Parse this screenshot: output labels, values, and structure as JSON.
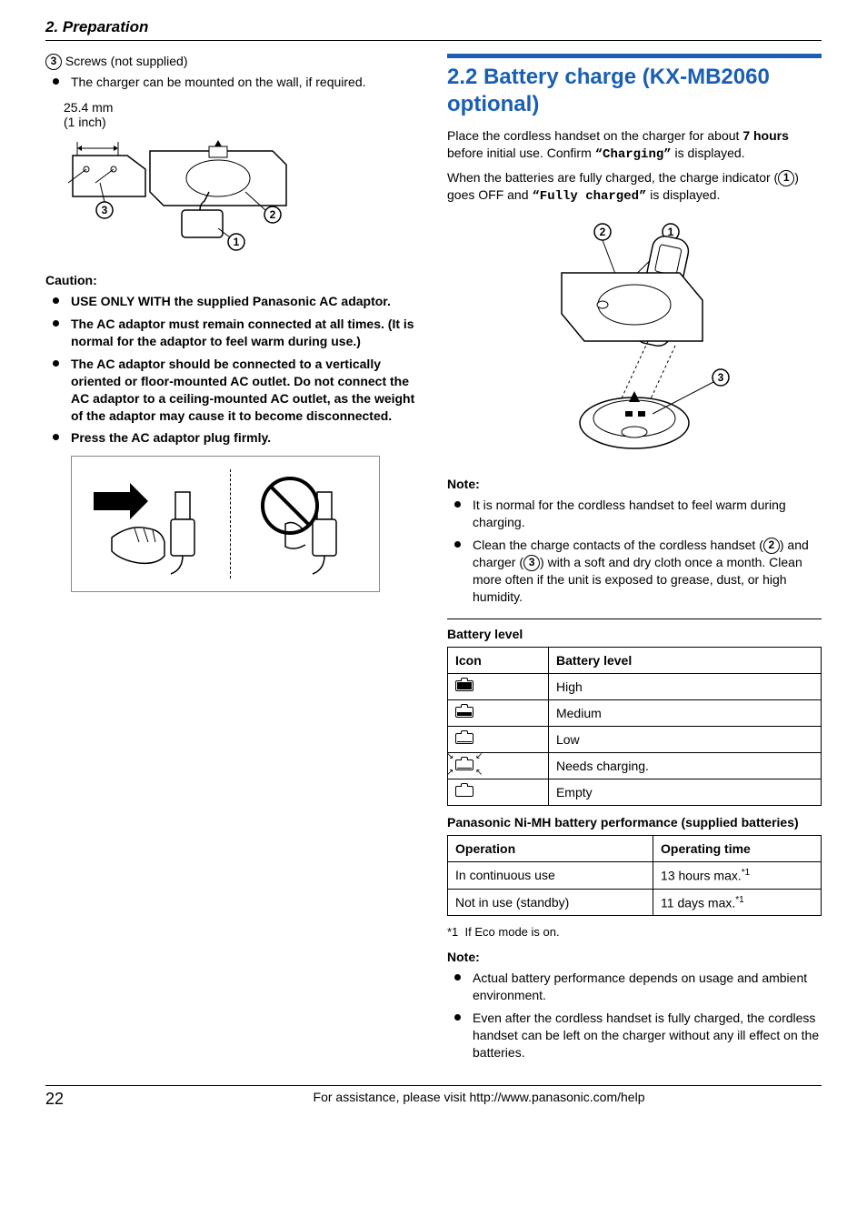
{
  "header": {
    "chapter": "2. Preparation"
  },
  "left": {
    "item3_num": "3",
    "item3_label": "Screws (not supplied)",
    "item3_note": "The charger can be mounted on the wall, if required.",
    "fig1": {
      "dim_mm": "25.4 mm",
      "dim_in": "(1 inch)",
      "c1": "1",
      "c2": "2",
      "c3": "3"
    },
    "caution_title": "Caution:",
    "cautions": [
      "USE ONLY WITH the supplied Panasonic AC adaptor.",
      "The AC adaptor must remain connected at all times. (It is normal for the adaptor to feel warm during use.)",
      "The AC adaptor should be connected to a vertically oriented or floor-mounted AC outlet. Do not connect the AC adaptor to a ceiling-mounted AC outlet, as the weight of the adaptor may cause it to become disconnected.",
      "Press the AC adaptor plug firmly."
    ]
  },
  "right": {
    "title": "2.2 Battery charge (KX-MB2060 optional)",
    "p1_a": "Place the cordless handset on the charger for about ",
    "p1_b": "7 hours",
    "p1_c": " before initial use. Confirm ",
    "p1_d": "“Charging”",
    "p1_e": " is displayed.",
    "p2_a": "When the batteries are fully charged, the charge indicator (",
    "p2_num": "1",
    "p2_b": ") goes OFF and ",
    "p2_c": "“Fully charged”",
    "p2_d": " is displayed.",
    "fig2": {
      "c1": "1",
      "c2": "2",
      "c3": "3"
    },
    "note_title": "Note:",
    "notes1": {
      "n1": "It is normal for the cordless handset to feel warm during charging.",
      "n2_a": "Clean the charge contacts of the cordless handset (",
      "n2_num1": "2",
      "n2_b": ") and charger (",
      "n2_num2": "3",
      "n2_c": ") with a soft and dry cloth once a month. Clean more often if the unit is exposed to grease, dust, or high humidity."
    },
    "batt_level_head": "Battery level",
    "batt_table": {
      "col_icon": "Icon",
      "col_level": "Battery level",
      "rows": [
        {
          "level": "High",
          "fill": 1.0
        },
        {
          "level": "Medium",
          "fill": 0.55
        },
        {
          "level": "Low",
          "fill": 0.15
        },
        {
          "level": "Needs charging.",
          "fill": 0.15,
          "blink": true
        },
        {
          "level": "Empty",
          "fill": 0.0
        }
      ]
    },
    "perf_head": "Panasonic Ni-MH battery performance (supplied batteries)",
    "perf_table": {
      "col_op": "Operation",
      "col_time": "Operating time",
      "rows": [
        {
          "op": "In continuous use",
          "time": "13 hours max.",
          "fn": "*1"
        },
        {
          "op": "Not in use (standby)",
          "time": "11 days max.",
          "fn": "*1"
        }
      ]
    },
    "footnote_mark": "*1",
    "footnote_text": "If Eco mode is on.",
    "notes2": [
      "Actual battery performance depends on usage and ambient environment.",
      "Even after the cordless handset is fully charged, the cordless handset can be left on the charger without any ill effect on the batteries."
    ]
  },
  "footer": {
    "page": "22",
    "text": "For assistance, please visit http://www.panasonic.com/help"
  },
  "colors": {
    "accent": "#1a5fb4"
  }
}
